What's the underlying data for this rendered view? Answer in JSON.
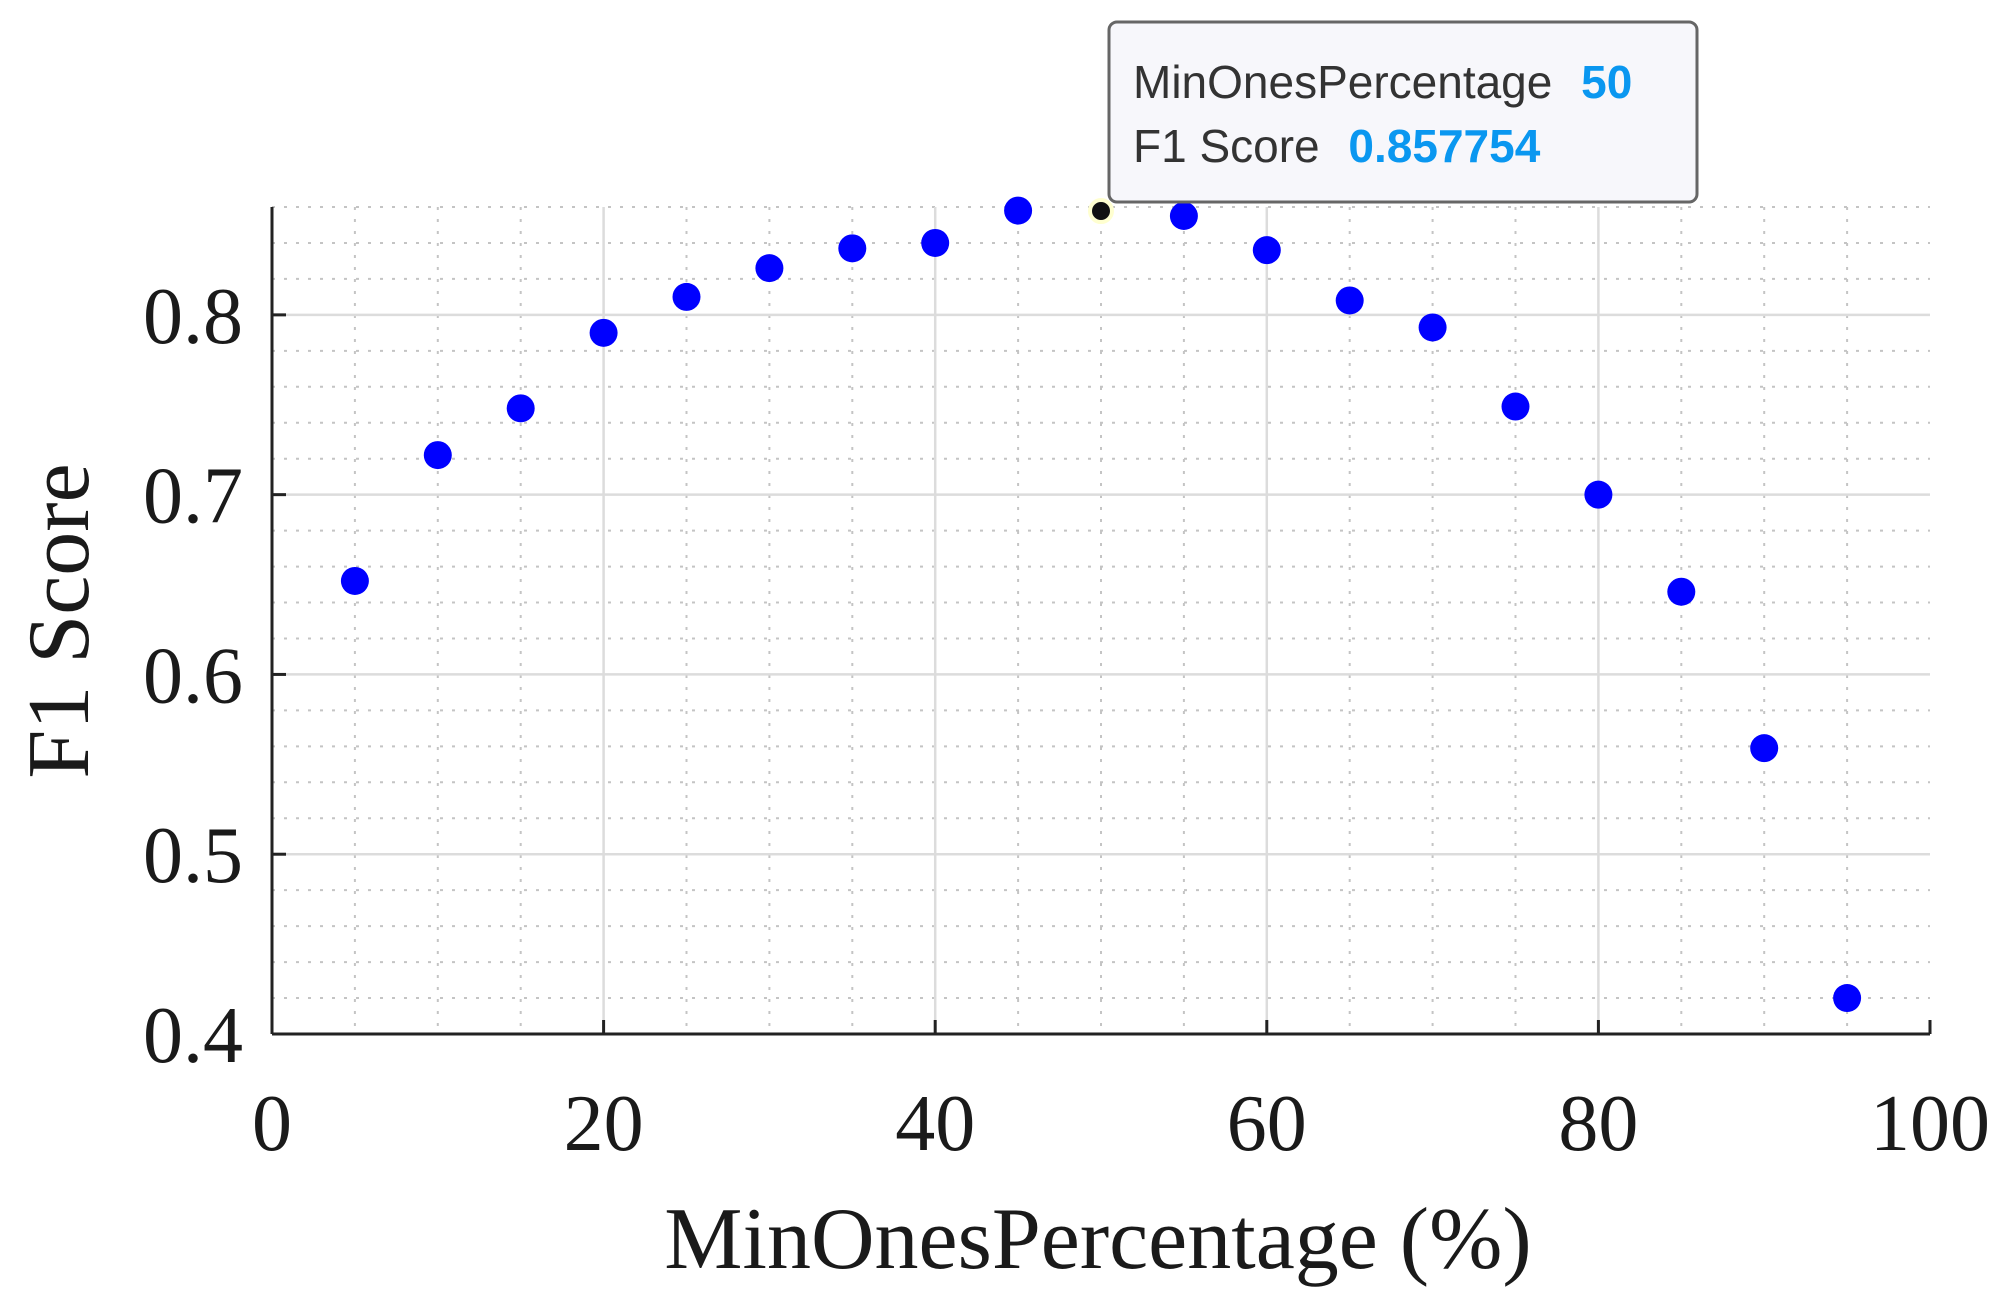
{
  "chart_data": {
    "type": "scatter",
    "title": "",
    "xlabel": "MinOnesPercentage (%)",
    "ylabel": "F1 Score",
    "xlim": [
      0,
      100
    ],
    "ylim": [
      0.4,
      0.86
    ],
    "x_ticks": [
      "0",
      "20",
      "40",
      "60",
      "80",
      "100"
    ],
    "y_ticks": [
      "0.4",
      "0.5",
      "0.6",
      "0.7",
      "0.8"
    ],
    "grid": true,
    "minor_grid": true,
    "marker_color": "#0000ff",
    "series": [
      {
        "x": [
          5,
          10,
          15,
          20,
          25,
          30,
          35,
          40,
          45,
          50,
          55,
          60,
          65,
          70,
          75,
          80,
          85,
          90,
          95
        ],
        "y": [
          0.652,
          0.722,
          0.748,
          0.79,
          0.81,
          0.826,
          0.837,
          0.84,
          0.858,
          0.857754,
          0.855,
          0.836,
          0.808,
          0.793,
          0.749,
          0.7,
          0.646,
          0.559,
          0.42
        ]
      }
    ],
    "datatip": {
      "x_label": "MinOnesPercentage",
      "x_value": "50",
      "y_label": "F1 Score",
      "y_value": "0.857754"
    }
  }
}
